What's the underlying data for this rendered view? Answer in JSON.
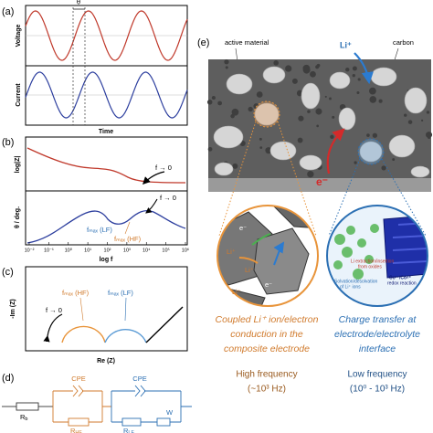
{
  "panel_a": {
    "label": "(a)",
    "theta": "θ",
    "y_top": "Voltage",
    "y_bottom": "Current",
    "x_label": "Time"
  },
  "panel_b": {
    "label": "(b)",
    "y_top": "log|Z|",
    "y_bottom": "θ / deg.",
    "x_label": "log f",
    "x_ticks": [
      "10⁻²",
      "10⁻¹",
      "10⁰",
      "10¹",
      "10²",
      "10³",
      "10⁴",
      "10⁵",
      "10⁶"
    ],
    "arrow_top": "f → 0",
    "arrow_bottom": "f → 0",
    "peak_lf": "fₘₐₓ (LF)",
    "peak_hf": "fₘₐₓ (HF)"
  },
  "panel_c": {
    "label": "(c)",
    "y_label": "-Im (Z)",
    "x_label": "Re (Z)",
    "arrow": "f → 0",
    "peak_hf": "fₘₐₓ (HF)",
    "peak_lf": "fₘₐₓ (LF)"
  },
  "panel_d": {
    "label": "(d)",
    "rb": {
      "symbol": "R",
      "sub": "b"
    },
    "cpe_hf": "CPE",
    "rhf": {
      "symbol": "R",
      "sub": "HF"
    },
    "cpe_lf": "CPE",
    "rlf": {
      "symbol": "R",
      "sub": "LF"
    },
    "warburg": "W"
  },
  "panel_e": {
    "label": "(e)",
    "active_material": "active material",
    "carbon": "carbon",
    "li_ion": "Li⁺",
    "electron": "e⁻",
    "left_zoom": {
      "electrons": [
        "e⁻",
        "e⁻",
        "e⁻"
      ],
      "ions": [
        "Li⁺",
        "Li⁺",
        "Li⁺"
      ]
    },
    "right_zoom": {
      "insertion": [
        "Li extraction/insertion",
        "from oxides"
      ],
      "solvation": [
        "Solvation/desolvation",
        "of Li⁺ ions"
      ],
      "redox": [
        "Co³⁺/Co⁴⁺",
        "redox reaction"
      ]
    },
    "left_caption": [
      "Coupled Li⁺ ion/electron",
      "conduction in the",
      "composite electrode"
    ],
    "left_frequency": [
      "High frequency",
      "(~10³ Hz)"
    ],
    "right_caption": [
      "Charge transfer at",
      "electrode/electrolyte",
      "interface"
    ],
    "right_frequency": [
      "Low frequency",
      "(10⁰ - 10³ Hz)"
    ]
  }
}
